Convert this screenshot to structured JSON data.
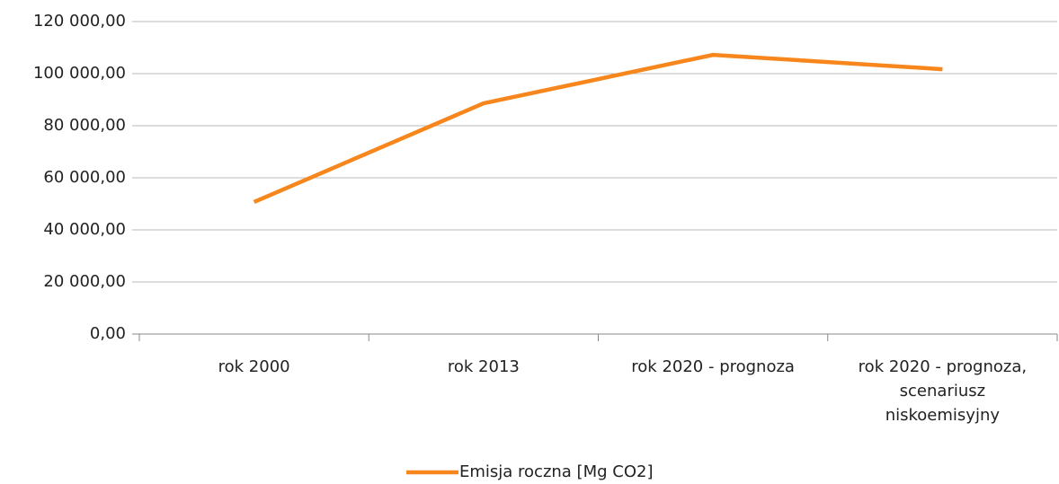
{
  "chart_data": {
    "type": "line",
    "categories": [
      "rok 2000",
      "rok 2013",
      "rok 2020 - prognoza",
      "rok 2020 - prognoza, scenariusz niskoemisyjny"
    ],
    "series": [
      {
        "name": "Emisja roczna [Mg CO2]",
        "color": "#f7861c",
        "values": [
          50700,
          88600,
          107200,
          101700
        ]
      }
    ],
    "ylim": [
      0,
      120000
    ],
    "yticks": [
      {
        "value": 0,
        "label": "0,00"
      },
      {
        "value": 20000,
        "label": "20 000,00"
      },
      {
        "value": 40000,
        "label": "40 000,00"
      },
      {
        "value": 60000,
        "label": "60 000,00"
      },
      {
        "value": 80000,
        "label": "80 000,00"
      },
      {
        "value": 100000,
        "label": "100 000,00"
      },
      {
        "value": 120000,
        "label": "120 000,00"
      }
    ],
    "grid": true,
    "legend": "bottom"
  }
}
